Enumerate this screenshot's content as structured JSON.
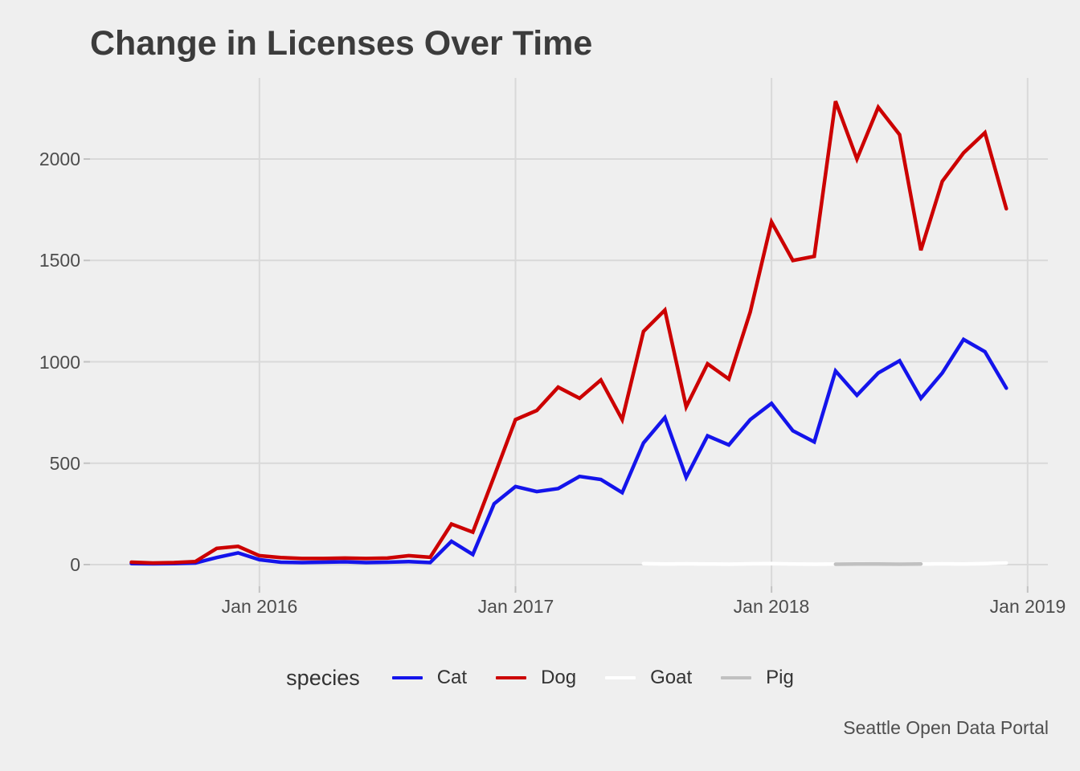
{
  "title": "Change in Licenses Over Time",
  "caption": "Seattle Open Data Portal",
  "legend": {
    "title": "species",
    "items": [
      {
        "label": "Cat",
        "color": "#1414EB"
      },
      {
        "label": "Dog",
        "color": "#CC0000"
      },
      {
        "label": "Goat",
        "color": "#FFFFFF"
      },
      {
        "label": "Pig",
        "color": "#C0C0C0"
      }
    ]
  },
  "axes": {
    "y": {
      "ticks": [
        "0",
        "500",
        "1000",
        "1500",
        "2000"
      ],
      "values": [
        0,
        500,
        1000,
        1500,
        2000
      ]
    },
    "x": {
      "ticks": [
        "Jan 2016",
        "Jan 2017",
        "Jan 2018",
        "Jan 2019"
      ],
      "month_indices": [
        6,
        18,
        30,
        42
      ]
    }
  },
  "colors": {
    "background": "#EFEFEF",
    "gridline": "#D9D9D9",
    "tick_mark": "#C2C2C2",
    "title_text": "#3C3C3C",
    "axis_text": "#4D4D4D"
  },
  "chart_data": {
    "type": "line",
    "title": "Change in Licenses Over Time",
    "xlabel": "",
    "ylabel": "",
    "x_unit": "month",
    "x_range": [
      "Jul 2015",
      "Dec 2018"
    ],
    "ylim": [
      0,
      2300
    ],
    "grid": "major-only",
    "legend_position": "bottom",
    "months": [
      "Jul 2015",
      "Aug 2015",
      "Sep 2015",
      "Oct 2015",
      "Nov 2015",
      "Dec 2015",
      "Jan 2016",
      "Feb 2016",
      "Mar 2016",
      "Apr 2016",
      "May 2016",
      "Jun 2016",
      "Jul 2016",
      "Aug 2016",
      "Sep 2016",
      "Oct 2016",
      "Nov 2016",
      "Dec 2016",
      "Jan 2017",
      "Feb 2017",
      "Mar 2017",
      "Apr 2017",
      "May 2017",
      "Jun 2017",
      "Jul 2017",
      "Aug 2017",
      "Sep 2017",
      "Oct 2017",
      "Nov 2017",
      "Dec 2017",
      "Jan 2018",
      "Feb 2018",
      "Mar 2018",
      "Apr 2018",
      "May 2018",
      "Jun 2018",
      "Jul 2018",
      "Aug 2018",
      "Sep 2018",
      "Oct 2018",
      "Nov 2018",
      "Dec 2018"
    ],
    "series": [
      {
        "name": "Cat",
        "color": "#1414EB",
        "values": [
          5,
          4,
          5,
          8,
          35,
          58,
          24,
          12,
          10,
          12,
          14,
          10,
          12,
          15,
          10,
          115,
          50,
          300,
          385,
          360,
          375,
          435,
          420,
          355,
          600,
          725,
          430,
          635,
          590,
          715,
          795,
          660,
          605,
          955,
          835,
          945,
          1005,
          820,
          945,
          1110,
          1050,
          870
        ]
      },
      {
        "name": "Dog",
        "color": "#CC0000",
        "values": [
          12,
          8,
          10,
          15,
          80,
          90,
          44,
          35,
          30,
          30,
          32,
          30,
          32,
          44,
          36,
          200,
          160,
          435,
          715,
          760,
          875,
          820,
          910,
          715,
          1150,
          1255,
          778,
          990,
          915,
          1245,
          1690,
          1500,
          1520,
          2285,
          2000,
          2255,
          2120,
          1550,
          1890,
          2030,
          2130,
          1755
        ]
      },
      {
        "name": "Goat",
        "color": "#FFFFFF",
        "values": [
          null,
          null,
          null,
          null,
          null,
          null,
          null,
          null,
          null,
          null,
          null,
          null,
          null,
          null,
          null,
          null,
          null,
          null,
          null,
          null,
          null,
          null,
          null,
          null,
          5,
          3,
          4,
          3,
          2,
          4,
          5,
          3,
          2,
          3,
          4,
          3,
          2,
          3,
          4,
          3,
          5,
          8
        ]
      },
      {
        "name": "Pig",
        "color": "#C0C0C0",
        "values": [
          null,
          null,
          null,
          null,
          null,
          null,
          null,
          null,
          null,
          null,
          null,
          null,
          null,
          null,
          null,
          null,
          null,
          null,
          null,
          null,
          null,
          null,
          null,
          null,
          null,
          null,
          null,
          null,
          null,
          null,
          null,
          null,
          null,
          2,
          3,
          3,
          2,
          3,
          null,
          null,
          null,
          null
        ]
      }
    ]
  }
}
